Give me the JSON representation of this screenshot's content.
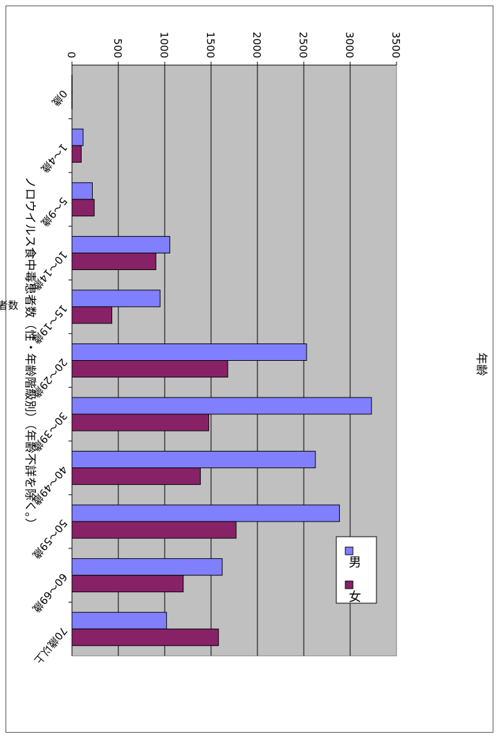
{
  "chart_data": {
    "type": "bar",
    "title": "ノロウイルス食中毒患者数（性・年齢階級別）（年齢不詳を除く。）",
    "xlabel": "年齢",
    "ylabel": "患者数",
    "categories": [
      "0歳",
      "1～4歳",
      "5～9歳",
      "10～14歳",
      "15～19歳",
      "20～29歳",
      "30～39歳",
      "40～49歳",
      "50～59歳",
      "60～69歳",
      "70歳以上"
    ],
    "series": [
      {
        "name": "男",
        "color": "#8080ff",
        "values": [
          2,
          120,
          220,
          1055,
          950,
          2530,
          3230,
          2625,
          2885,
          1620,
          1020
        ]
      },
      {
        "name": "女",
        "color": "#882266",
        "values": [
          2,
          100,
          240,
          905,
          430,
          1680,
          1475,
          1385,
          1770,
          1200,
          1580
        ]
      }
    ],
    "ylim": [
      0,
      3500
    ],
    "yticks": [
      "0",
      "500",
      "1000",
      "1500",
      "2000",
      "2500",
      "3000",
      "3500"
    ],
    "grid": true,
    "plot_background": "#c0c0c0",
    "legend_position": "top-left of plot (rotated view)",
    "orientation": "page rotated 90° clockwise"
  }
}
